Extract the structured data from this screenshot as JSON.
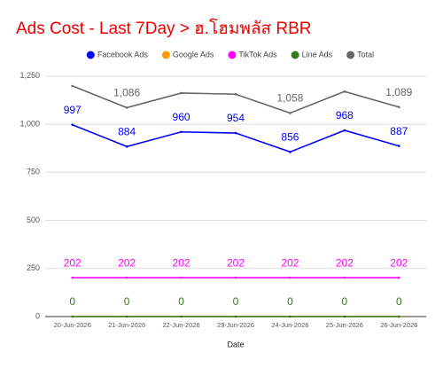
{
  "chart_data": {
    "type": "line",
    "title": "Ads Cost - Last 7Day > ฮ.โฮมพลัส RBR",
    "x_label": "Date",
    "categories": [
      "20-Jun-2026",
      "21-Jun-2026",
      "22-Jun-2026",
      "23-Jun-2026",
      "24-Jun-2026",
      "25-Jun-2026",
      "26-Jun-2026"
    ],
    "series": [
      {
        "name": "Facebook Ads",
        "color": "#0000ff",
        "values": [
          997,
          884,
          960,
          954,
          856,
          968,
          887
        ],
        "data_labels": true
      },
      {
        "name": "Google Ads",
        "color": "#ff9900",
        "values": [
          0,
          0,
          0,
          0,
          0,
          0,
          0
        ],
        "data_labels": false
      },
      {
        "name": "TikTok Ads",
        "color": "#ff00ff",
        "values": [
          202,
          202,
          202,
          202,
          202,
          202,
          202
        ],
        "data_labels": true
      },
      {
        "name": "Line Ads",
        "color": "#38761d",
        "values": [
          0,
          0,
          0,
          0,
          0,
          0,
          0
        ],
        "data_labels": true
      },
      {
        "name": "Total",
        "color": "#666666",
        "values": [
          1199,
          1086,
          1162,
          1156,
          1058,
          1170,
          1089
        ],
        "value_labels": [
          null,
          "1,086",
          null,
          null,
          "1,058",
          null,
          "1,089"
        ],
        "data_labels": true
      }
    ],
    "ylim": [
      0,
      1300
    ],
    "yticks": [
      0,
      250,
      500,
      750,
      {
        "value": 1000,
        "label": "1,000"
      },
      {
        "value": 1250,
        "label": "1,250"
      }
    ],
    "grid": true,
    "legend": "top"
  }
}
